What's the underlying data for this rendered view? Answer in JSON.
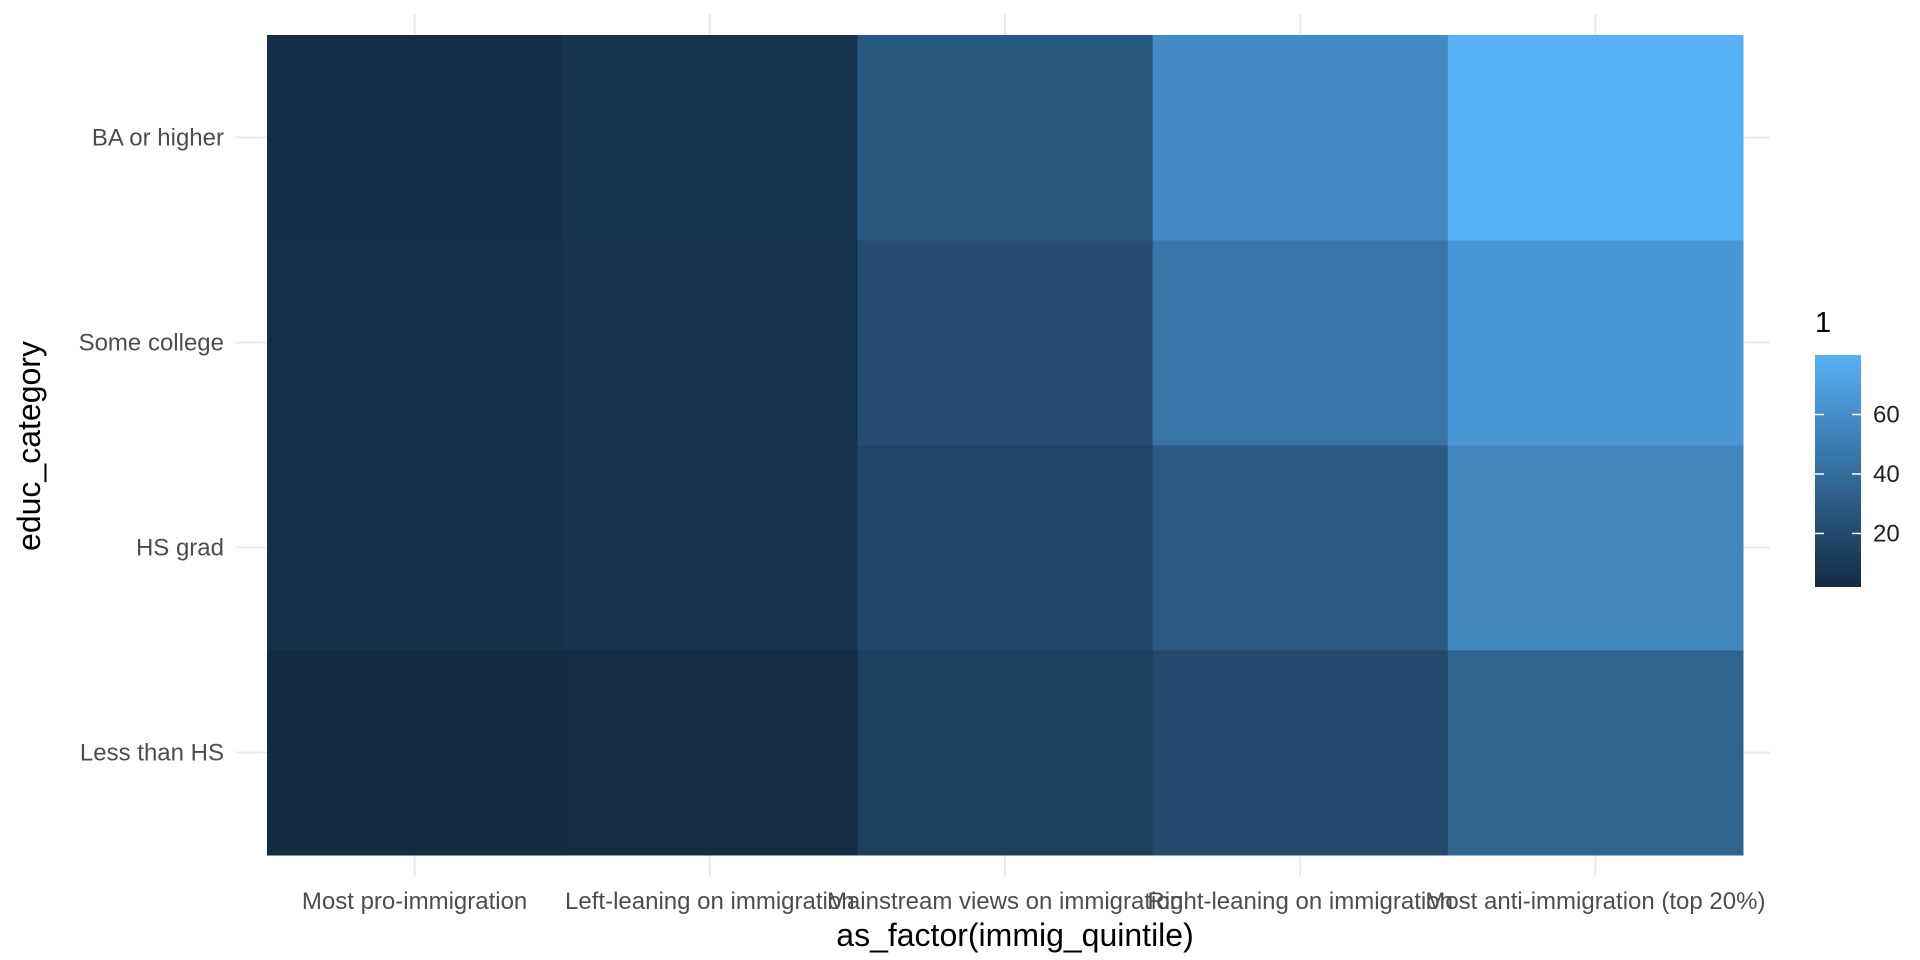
{
  "chart_data": {
    "type": "heatmap",
    "xlabel": "as_factor(immig_quintile)",
    "ylabel": "educ_category",
    "x_categories": [
      "Most pro-immigration",
      "Left-leaning on immigration",
      "Mainstream views on immigration",
      "Right-leaning on immigration",
      "Most anti-immigration (top 20%)"
    ],
    "y_categories": [
      "Less than HS",
      "HS grad",
      "Some college",
      "BA or higher"
    ],
    "values": [
      [
        2,
        3,
        14,
        20,
        35
      ],
      [
        5,
        6,
        17,
        30,
        55
      ],
      [
        5,
        6,
        22,
        45,
        65
      ],
      [
        4,
        7,
        28,
        58,
        80
      ]
    ],
    "legend": {
      "title": "1",
      "ticks": [
        20,
        40,
        60
      ],
      "range": [
        2,
        80
      ],
      "low_color": "#132B43",
      "high_color": "#56B1F7",
      "placement": "right"
    },
    "grid": true
  }
}
